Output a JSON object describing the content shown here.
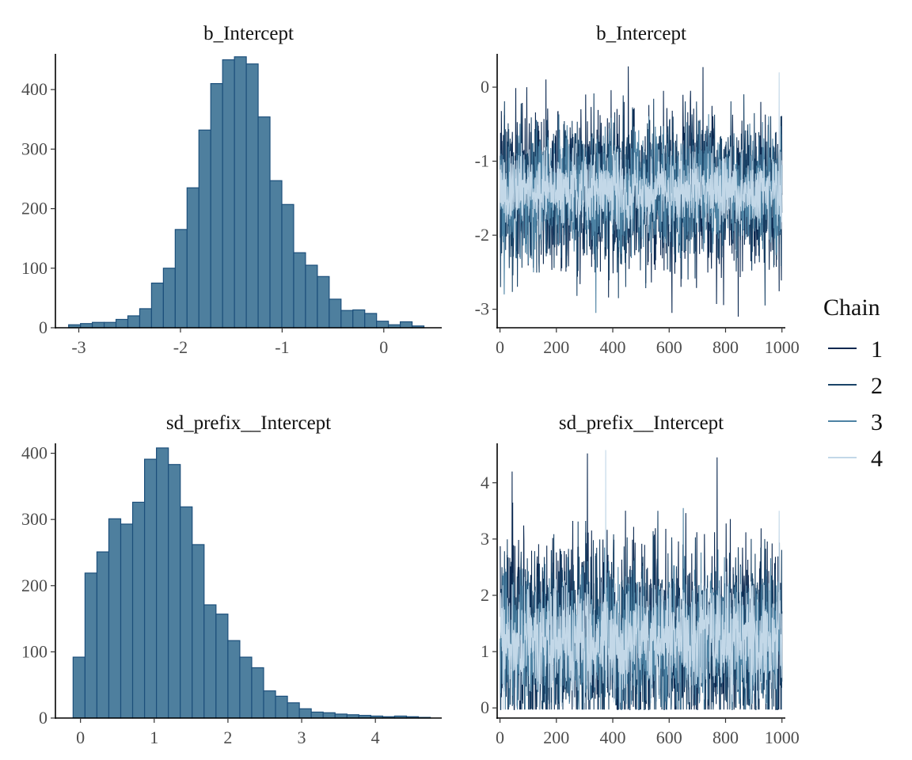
{
  "chart_data": [
    {
      "type": "bar",
      "title": "b_Intercept",
      "bin_start": -3.1,
      "bin_width": 0.1165,
      "values": [
        5,
        7,
        9,
        9,
        14,
        20,
        32,
        75,
        100,
        165,
        235,
        332,
        410,
        450,
        455,
        443,
        354,
        247,
        207,
        126,
        105,
        86,
        48,
        29,
        30,
        24,
        11,
        5,
        10,
        3
      ],
      "xlim": [
        -3.23,
        0.57
      ],
      "ylim": [
        0,
        460
      ],
      "x_ticks": [
        "-3",
        "-2",
        "-1",
        "0"
      ],
      "y_ticks": [
        "0",
        "100",
        "200",
        "300",
        "400"
      ]
    },
    {
      "type": "line",
      "title": "b_Intercept",
      "x_range": [
        1,
        1000
      ],
      "mean": -1.4,
      "series": [
        {
          "name": "1",
          "color": "#0b2850",
          "spread": 0.55,
          "spikes": [
            [
              95,
              0.0
            ],
            [
              720,
              0.27
            ],
            [
              455,
              0.28
            ],
            [
              845,
              -3.1
            ],
            [
              610,
              -3.05
            ]
          ]
        },
        {
          "name": "2",
          "color": "#1a4468",
          "spread": 0.5,
          "spikes": [
            [
              420,
              -2.85
            ],
            [
              940,
              -2.95
            ]
          ]
        },
        {
          "name": "3",
          "color": "#4d82a3",
          "spread": 0.4,
          "spikes": [
            [
              340,
              -3.05
            ],
            [
              15,
              -2.8
            ]
          ]
        },
        {
          "name": "4",
          "color": "#c3d8e8",
          "spread": 0.25,
          "spikes": [
            [
              990,
              0.2
            ]
          ]
        }
      ],
      "xlim": [
        -10,
        1012
      ],
      "ylim": [
        -3.25,
        0.45
      ],
      "x_ticks": [
        "0",
        "200",
        "400",
        "600",
        "800",
        "1000"
      ],
      "y_ticks": [
        "0",
        "-1",
        "-2",
        "-3"
      ]
    },
    {
      "type": "bar",
      "title": "sd_prefix__Intercept",
      "bin_start": -0.1,
      "bin_width": 0.1615,
      "values": [
        92,
        219,
        251,
        301,
        293,
        326,
        391,
        408,
        383,
        319,
        262,
        171,
        157,
        117,
        92,
        76,
        41,
        33,
        23,
        14,
        9,
        8,
        6,
        5,
        4,
        3,
        2,
        3,
        2,
        1
      ],
      "xlim": [
        -0.34,
        4.9
      ],
      "ylim": [
        0,
        415
      ],
      "x_ticks": [
        "0",
        "1",
        "2",
        "3",
        "4"
      ],
      "y_ticks": [
        "0",
        "100",
        "200",
        "300",
        "400"
      ]
    },
    {
      "type": "line",
      "title": "sd_prefix__Intercept",
      "x_range": [
        1,
        1000
      ],
      "mean": 1.2,
      "series": [
        {
          "name": "1",
          "color": "#0b2850",
          "spread": 0.9,
          "spikes": [
            [
              310,
              4.52
            ],
            [
              770,
              4.45
            ],
            [
              43,
              4.2
            ]
          ]
        },
        {
          "name": "2",
          "color": "#1a4468",
          "spread": 0.8,
          "spikes": [
            [
              560,
              3.5
            ]
          ]
        },
        {
          "name": "3",
          "color": "#4d82a3",
          "spread": 0.6,
          "spikes": [
            [
              650,
              3.55
            ]
          ]
        },
        {
          "name": "4",
          "color": "#c3d8e8",
          "spread": 0.5,
          "spikes": [
            [
              375,
              4.58
            ],
            [
              990,
              3.5
            ]
          ]
        }
      ],
      "xlim": [
        -10,
        1012
      ],
      "ylim": [
        -0.18,
        4.7
      ],
      "x_ticks": [
        "0",
        "200",
        "400",
        "600",
        "800",
        "1000"
      ],
      "y_ticks": [
        "0",
        "1",
        "2",
        "3",
        "4"
      ]
    }
  ],
  "legend": {
    "title": "Chain",
    "entries": [
      {
        "label": "1",
        "color": "#0b2850"
      },
      {
        "label": "2",
        "color": "#1a4468"
      },
      {
        "label": "3",
        "color": "#4d82a3"
      },
      {
        "label": "4",
        "color": "#c3d8e8"
      }
    ]
  }
}
